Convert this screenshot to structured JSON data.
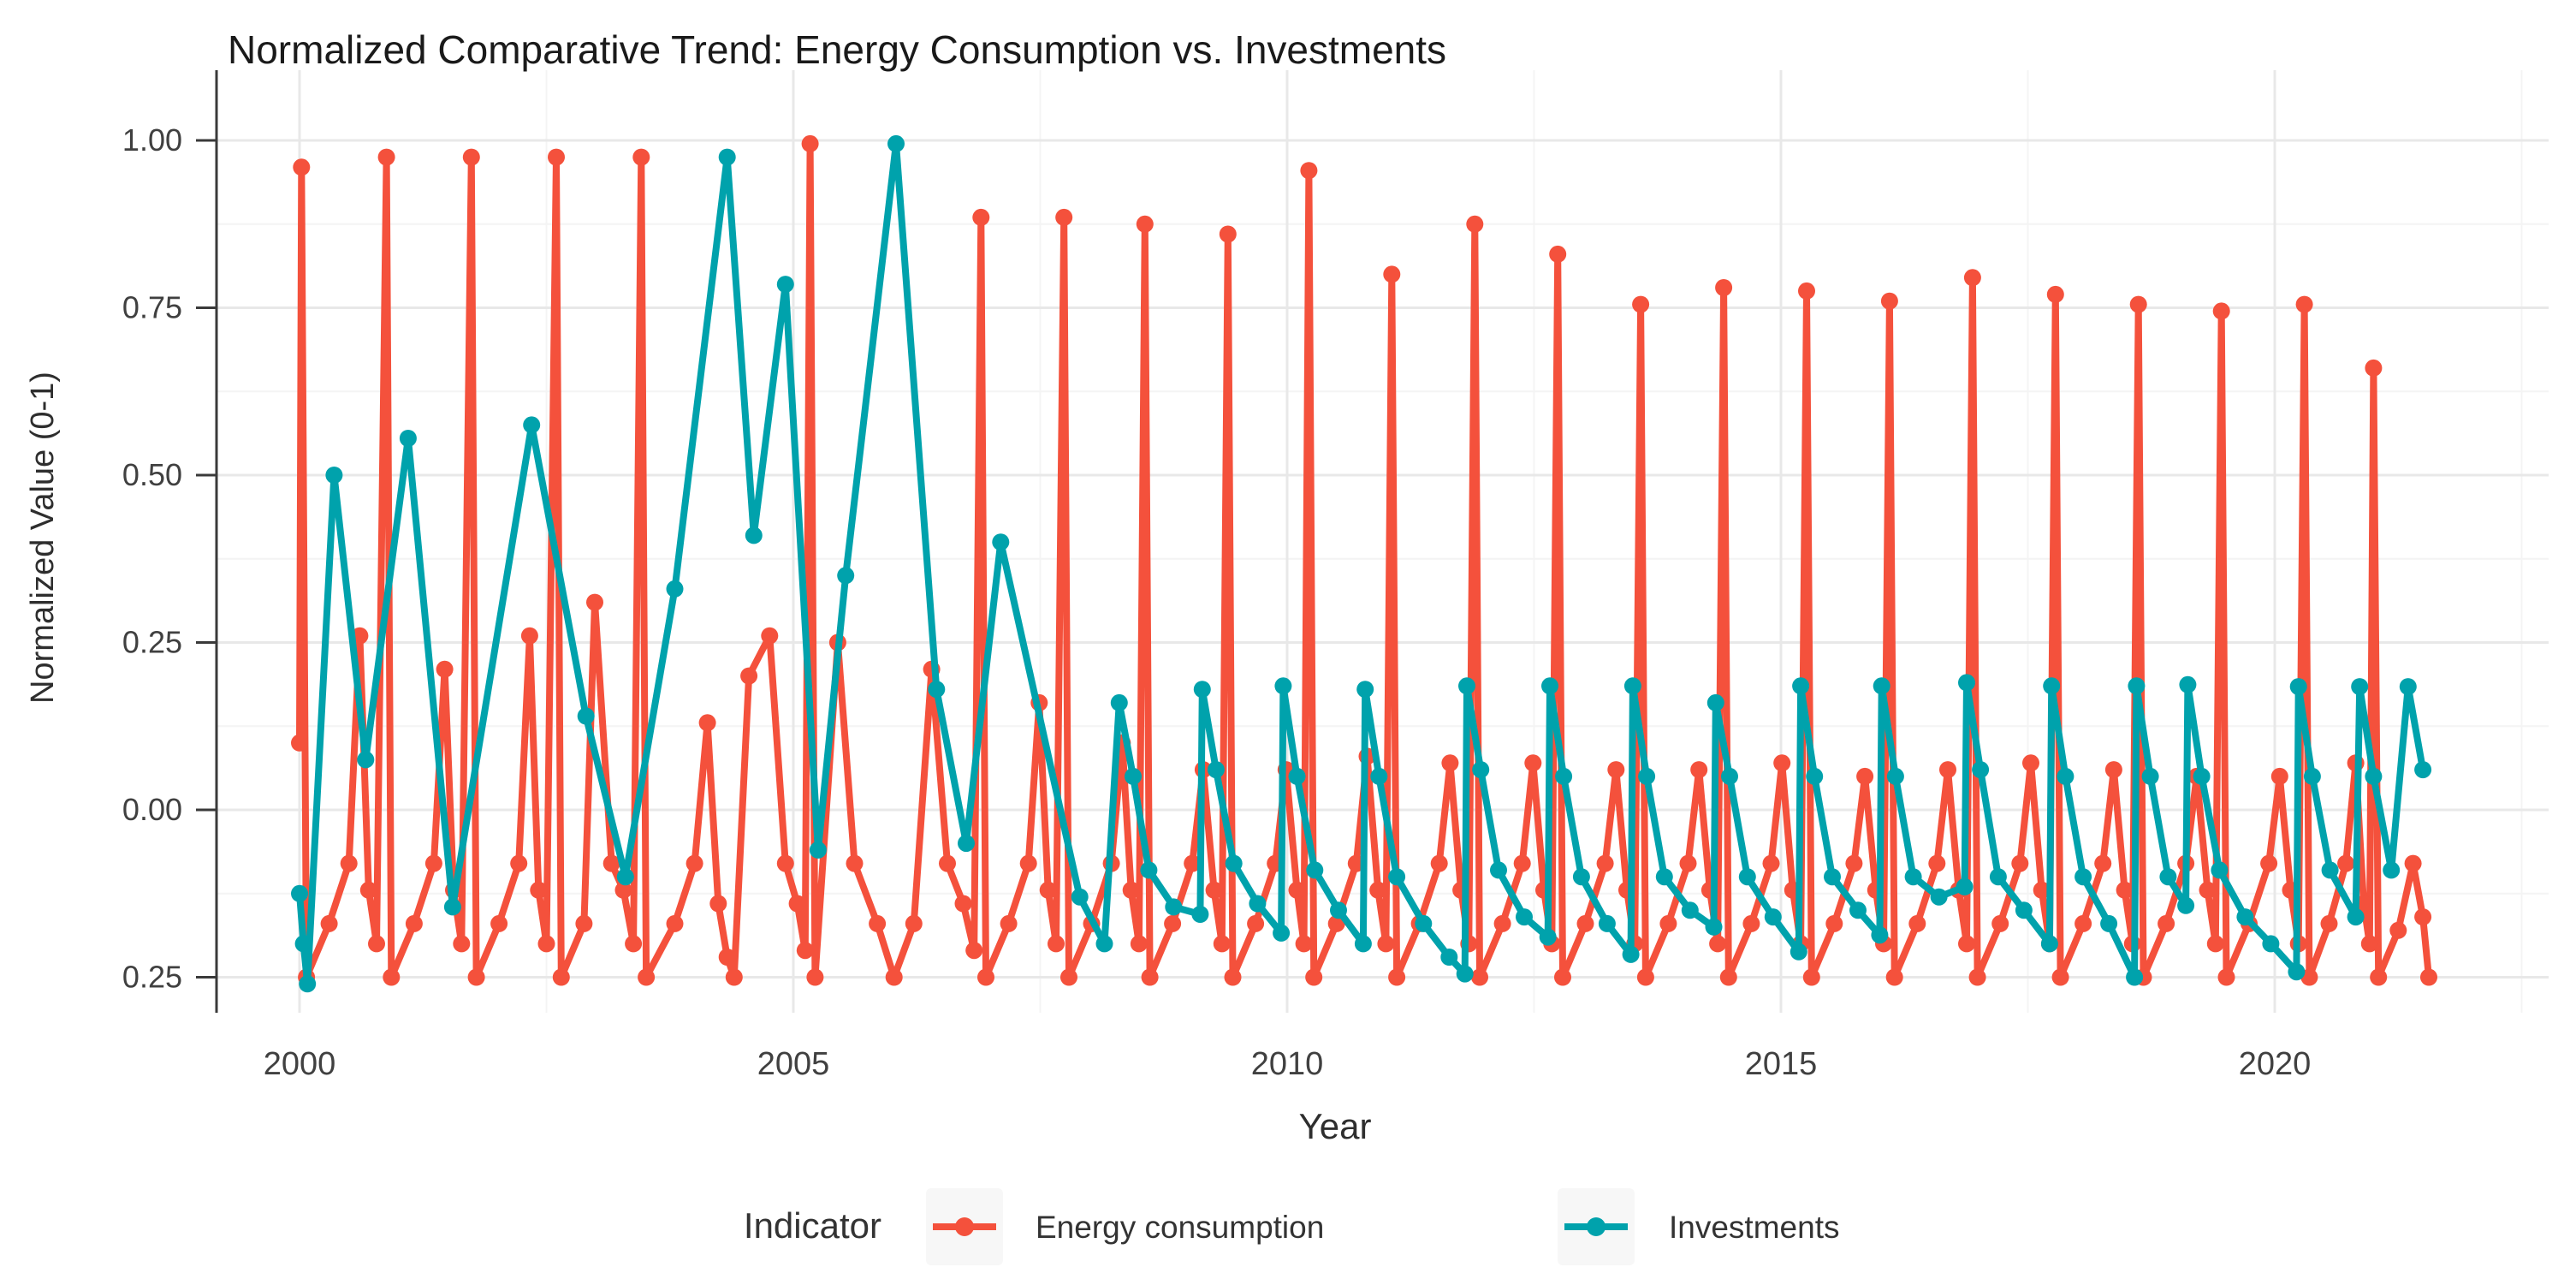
{
  "title": "Normalized Comparative Trend: Energy Consumption vs. Investments",
  "axes": {
    "y_title": "Normalized Value (0-1)",
    "x_title": "Year",
    "y_ticks": [
      {
        "label": "1.00",
        "value": 1.0
      },
      {
        "label": "0.75",
        "value": 0.75
      },
      {
        "label": "0.50",
        "value": 0.5
      },
      {
        "label": "0.25",
        "value": 0.25
      },
      {
        "label": "0.00",
        "value": 0.0
      },
      {
        "label": "0.25",
        "value": -0.25
      }
    ],
    "x_ticks": [
      {
        "label": "2000",
        "value": 2000
      },
      {
        "label": "2005",
        "value": 2005
      },
      {
        "label": "2010",
        "value": 2010
      },
      {
        "label": "2015",
        "value": 2015
      },
      {
        "label": "2020",
        "value": 2020
      }
    ],
    "y_minor": [
      0.875,
      0.625,
      0.375,
      0.125,
      -0.125
    ],
    "x_minor": [
      2002.5,
      2007.5,
      2012.5,
      2017.5,
      2022.5
    ]
  },
  "legend": {
    "title": "Indicator",
    "items": [
      {
        "label": "Energy consumption",
        "color": "#F4513C"
      },
      {
        "label": "Investments",
        "color": "#00A2AC"
      }
    ]
  },
  "colors": {
    "energy": "#F4513C",
    "investments": "#00A2AC",
    "grid_major": "#E8E8E8",
    "grid_minor": "#F4F4F4",
    "axis_line": "#3A3A3A",
    "tick_text": "#404040",
    "title_text": "#1A1A1A"
  },
  "chart_data": {
    "type": "line",
    "title": "Normalized Comparative Trend: Energy Consumption vs. Investments",
    "xlabel": "Year",
    "ylabel": "Normalized Value (0-1)",
    "xlim": [
      1999.2,
      2022.8
    ],
    "ylim": [
      -0.32,
      1.05
    ],
    "grid": true,
    "legend_position": "bottom",
    "series": [
      {
        "name": "Energy consumption",
        "color": "#F4513C",
        "points": [
          [
            2000.0,
            0.1
          ],
          [
            2000.02,
            0.96
          ],
          [
            2000.07,
            -0.25
          ],
          [
            2000.3,
            -0.17
          ],
          [
            2000.5,
            -0.08
          ],
          [
            2000.61,
            0.26
          ],
          [
            2000.7,
            -0.12
          ],
          [
            2000.78,
            -0.2
          ],
          [
            2000.88,
            0.975
          ],
          [
            2000.93,
            -0.25
          ],
          [
            2001.16,
            -0.17
          ],
          [
            2001.36,
            -0.08
          ],
          [
            2001.47,
            0.21
          ],
          [
            2001.56,
            -0.12
          ],
          [
            2001.64,
            -0.2
          ],
          [
            2001.74,
            0.975
          ],
          [
            2001.79,
            -0.25
          ],
          [
            2002.02,
            -0.17
          ],
          [
            2002.22,
            -0.08
          ],
          [
            2002.33,
            0.26
          ],
          [
            2002.42,
            -0.12
          ],
          [
            2002.5,
            -0.2
          ],
          [
            2002.6,
            0.975
          ],
          [
            2002.65,
            -0.25
          ],
          [
            2002.88,
            -0.17
          ],
          [
            2002.99,
            0.31
          ],
          [
            2003.16,
            -0.08
          ],
          [
            2003.28,
            -0.12
          ],
          [
            2003.38,
            -0.2
          ],
          [
            2003.46,
            0.975
          ],
          [
            2003.51,
            -0.25
          ],
          [
            2003.8,
            -0.17
          ],
          [
            2004.0,
            -0.08
          ],
          [
            2004.13,
            0.13
          ],
          [
            2004.24,
            -0.14
          ],
          [
            2004.33,
            -0.22
          ],
          [
            2004.4,
            -0.25
          ],
          [
            2004.55,
            0.2
          ],
          [
            2004.76,
            0.26
          ],
          [
            2004.92,
            -0.08
          ],
          [
            2005.04,
            -0.14
          ],
          [
            2005.12,
            -0.21
          ],
          [
            2005.17,
            0.995
          ],
          [
            2005.22,
            -0.25
          ],
          [
            2005.45,
            0.25
          ],
          [
            2005.62,
            -0.08
          ],
          [
            2005.85,
            -0.17
          ],
          [
            2006.02,
            -0.25
          ],
          [
            2006.22,
            -0.17
          ],
          [
            2006.4,
            0.21
          ],
          [
            2006.56,
            -0.08
          ],
          [
            2006.72,
            -0.14
          ],
          [
            2006.83,
            -0.21
          ],
          [
            2006.9,
            0.885
          ],
          [
            2006.95,
            -0.25
          ],
          [
            2007.18,
            -0.17
          ],
          [
            2007.38,
            -0.08
          ],
          [
            2007.49,
            0.16
          ],
          [
            2007.58,
            -0.12
          ],
          [
            2007.66,
            -0.2
          ],
          [
            2007.74,
            0.885
          ],
          [
            2007.79,
            -0.25
          ],
          [
            2008.02,
            -0.17
          ],
          [
            2008.22,
            -0.08
          ],
          [
            2008.33,
            0.1
          ],
          [
            2008.42,
            -0.12
          ],
          [
            2008.5,
            -0.2
          ],
          [
            2008.56,
            0.875
          ],
          [
            2008.61,
            -0.25
          ],
          [
            2008.84,
            -0.17
          ],
          [
            2009.04,
            -0.08
          ],
          [
            2009.15,
            0.06
          ],
          [
            2009.26,
            -0.12
          ],
          [
            2009.34,
            -0.2
          ],
          [
            2009.4,
            0.86
          ],
          [
            2009.45,
            -0.25
          ],
          [
            2009.68,
            -0.17
          ],
          [
            2009.88,
            -0.08
          ],
          [
            2009.99,
            0.06
          ],
          [
            2010.1,
            -0.12
          ],
          [
            2010.17,
            -0.2
          ],
          [
            2010.22,
            0.955
          ],
          [
            2010.27,
            -0.25
          ],
          [
            2010.5,
            -0.17
          ],
          [
            2010.7,
            -0.08
          ],
          [
            2010.81,
            0.08
          ],
          [
            2010.92,
            -0.12
          ],
          [
            2011.0,
            -0.2
          ],
          [
            2011.06,
            0.8
          ],
          [
            2011.11,
            -0.25
          ],
          [
            2011.34,
            -0.17
          ],
          [
            2011.54,
            -0.08
          ],
          [
            2011.65,
            0.07
          ],
          [
            2011.76,
            -0.12
          ],
          [
            2011.84,
            -0.2
          ],
          [
            2011.9,
            0.875
          ],
          [
            2011.95,
            -0.25
          ],
          [
            2012.18,
            -0.17
          ],
          [
            2012.38,
            -0.08
          ],
          [
            2012.49,
            0.07
          ],
          [
            2012.6,
            -0.12
          ],
          [
            2012.68,
            -0.2
          ],
          [
            2012.74,
            0.83
          ],
          [
            2012.79,
            -0.25
          ],
          [
            2013.02,
            -0.17
          ],
          [
            2013.22,
            -0.08
          ],
          [
            2013.33,
            0.06
          ],
          [
            2013.44,
            -0.12
          ],
          [
            2013.52,
            -0.2
          ],
          [
            2013.58,
            0.755
          ],
          [
            2013.63,
            -0.25
          ],
          [
            2013.86,
            -0.17
          ],
          [
            2014.06,
            -0.08
          ],
          [
            2014.17,
            0.06
          ],
          [
            2014.28,
            -0.12
          ],
          [
            2014.36,
            -0.2
          ],
          [
            2014.42,
            0.78
          ],
          [
            2014.47,
            -0.25
          ],
          [
            2014.7,
            -0.17
          ],
          [
            2014.9,
            -0.08
          ],
          [
            2015.01,
            0.07
          ],
          [
            2015.12,
            -0.12
          ],
          [
            2015.2,
            -0.2
          ],
          [
            2015.26,
            0.775
          ],
          [
            2015.31,
            -0.25
          ],
          [
            2015.54,
            -0.17
          ],
          [
            2015.74,
            -0.08
          ],
          [
            2015.85,
            0.05
          ],
          [
            2015.96,
            -0.12
          ],
          [
            2016.04,
            -0.2
          ],
          [
            2016.1,
            0.76
          ],
          [
            2016.15,
            -0.25
          ],
          [
            2016.38,
            -0.17
          ],
          [
            2016.58,
            -0.08
          ],
          [
            2016.69,
            0.06
          ],
          [
            2016.8,
            -0.12
          ],
          [
            2016.88,
            -0.2
          ],
          [
            2016.94,
            0.795
          ],
          [
            2016.99,
            -0.25
          ],
          [
            2017.22,
            -0.17
          ],
          [
            2017.42,
            -0.08
          ],
          [
            2017.53,
            0.07
          ],
          [
            2017.64,
            -0.12
          ],
          [
            2017.72,
            -0.2
          ],
          [
            2017.78,
            0.77
          ],
          [
            2017.83,
            -0.25
          ],
          [
            2018.06,
            -0.17
          ],
          [
            2018.26,
            -0.08
          ],
          [
            2018.37,
            0.06
          ],
          [
            2018.48,
            -0.12
          ],
          [
            2018.56,
            -0.2
          ],
          [
            2018.62,
            0.755
          ],
          [
            2018.67,
            -0.25
          ],
          [
            2018.9,
            -0.17
          ],
          [
            2019.1,
            -0.08
          ],
          [
            2019.21,
            0.05
          ],
          [
            2019.32,
            -0.12
          ],
          [
            2019.4,
            -0.2
          ],
          [
            2019.46,
            0.745
          ],
          [
            2019.51,
            -0.25
          ],
          [
            2019.74,
            -0.17
          ],
          [
            2019.94,
            -0.08
          ],
          [
            2020.05,
            0.05
          ],
          [
            2020.16,
            -0.12
          ],
          [
            2020.24,
            -0.2
          ],
          [
            2020.3,
            0.755
          ],
          [
            2020.35,
            -0.25
          ],
          [
            2020.55,
            -0.17
          ],
          [
            2020.72,
            -0.08
          ],
          [
            2020.82,
            0.07
          ],
          [
            2020.9,
            -0.14
          ],
          [
            2020.96,
            -0.2
          ],
          [
            2021.0,
            0.66
          ],
          [
            2021.05,
            -0.25
          ],
          [
            2021.25,
            -0.18
          ],
          [
            2021.4,
            -0.08
          ],
          [
            2021.5,
            -0.16
          ],
          [
            2021.56,
            -0.25
          ]
        ]
      },
      {
        "name": "Investments",
        "color": "#00A2AC",
        "points": [
          [
            2000.0,
            -0.125
          ],
          [
            2000.04,
            -0.2
          ],
          [
            2000.08,
            -0.26
          ],
          [
            2000.35,
            0.5
          ],
          [
            2000.67,
            0.075
          ],
          [
            2001.1,
            0.555
          ],
          [
            2001.55,
            -0.145
          ],
          [
            2002.35,
            0.575
          ],
          [
            2002.9,
            0.14
          ],
          [
            2003.3,
            -0.1
          ],
          [
            2003.8,
            0.33
          ],
          [
            2004.33,
            0.975
          ],
          [
            2004.6,
            0.41
          ],
          [
            2004.92,
            0.785
          ],
          [
            2005.25,
            -0.06
          ],
          [
            2005.53,
            0.35
          ],
          [
            2006.04,
            0.995
          ],
          [
            2006.45,
            0.18
          ],
          [
            2006.75,
            -0.05
          ],
          [
            2007.1,
            0.4
          ],
          [
            2007.9,
            -0.13
          ],
          [
            2008.15,
            -0.2
          ],
          [
            2008.3,
            0.16
          ],
          [
            2008.44,
            0.05
          ],
          [
            2008.6,
            -0.09
          ],
          [
            2008.85,
            -0.145
          ],
          [
            2009.12,
            -0.156
          ],
          [
            2009.14,
            0.18
          ],
          [
            2009.28,
            0.06
          ],
          [
            2009.46,
            -0.08
          ],
          [
            2009.7,
            -0.14
          ],
          [
            2009.94,
            -0.184
          ],
          [
            2009.96,
            0.185
          ],
          [
            2010.1,
            0.05
          ],
          [
            2010.28,
            -0.09
          ],
          [
            2010.52,
            -0.15
          ],
          [
            2010.77,
            -0.2
          ],
          [
            2010.79,
            0.18
          ],
          [
            2010.93,
            0.05
          ],
          [
            2011.11,
            -0.1
          ],
          [
            2011.38,
            -0.17
          ],
          [
            2011.64,
            -0.22
          ],
          [
            2011.8,
            -0.245
          ],
          [
            2011.82,
            0.185
          ],
          [
            2011.96,
            0.06
          ],
          [
            2012.14,
            -0.09
          ],
          [
            2012.4,
            -0.16
          ],
          [
            2012.64,
            -0.19
          ],
          [
            2012.66,
            0.185
          ],
          [
            2012.8,
            0.05
          ],
          [
            2012.98,
            -0.1
          ],
          [
            2013.24,
            -0.17
          ],
          [
            2013.48,
            -0.216
          ],
          [
            2013.5,
            0.185
          ],
          [
            2013.64,
            0.05
          ],
          [
            2013.82,
            -0.1
          ],
          [
            2014.08,
            -0.15
          ],
          [
            2014.32,
            -0.175
          ],
          [
            2014.34,
            0.16
          ],
          [
            2014.48,
            0.05
          ],
          [
            2014.66,
            -0.1
          ],
          [
            2014.92,
            -0.16
          ],
          [
            2015.18,
            -0.212
          ],
          [
            2015.2,
            0.185
          ],
          [
            2015.34,
            0.05
          ],
          [
            2015.52,
            -0.1
          ],
          [
            2015.78,
            -0.15
          ],
          [
            2016.0,
            -0.187
          ],
          [
            2016.02,
            0.185
          ],
          [
            2016.16,
            0.05
          ],
          [
            2016.34,
            -0.1
          ],
          [
            2016.6,
            -0.13
          ],
          [
            2016.86,
            -0.115
          ],
          [
            2016.88,
            0.19
          ],
          [
            2017.02,
            0.06
          ],
          [
            2017.2,
            -0.1
          ],
          [
            2017.46,
            -0.15
          ],
          [
            2017.72,
            -0.2
          ],
          [
            2017.74,
            0.185
          ],
          [
            2017.88,
            0.05
          ],
          [
            2018.06,
            -0.1
          ],
          [
            2018.32,
            -0.17
          ],
          [
            2018.58,
            -0.25
          ],
          [
            2018.6,
            0.185
          ],
          [
            2018.74,
            0.05
          ],
          [
            2018.92,
            -0.1
          ],
          [
            2019.1,
            -0.143
          ],
          [
            2019.12,
            0.187
          ],
          [
            2019.26,
            0.05
          ],
          [
            2019.44,
            -0.09
          ],
          [
            2019.7,
            -0.16
          ],
          [
            2019.96,
            -0.2
          ],
          [
            2020.22,
            -0.242
          ],
          [
            2020.24,
            0.184
          ],
          [
            2020.38,
            0.05
          ],
          [
            2020.56,
            -0.09
          ],
          [
            2020.82,
            -0.16
          ],
          [
            2020.86,
            0.184
          ],
          [
            2021.0,
            0.05
          ],
          [
            2021.18,
            -0.09
          ],
          [
            2021.35,
            0.184
          ],
          [
            2021.5,
            0.06
          ]
        ]
      }
    ]
  },
  "geometry_note": "y axis top 1.00, bottom tick rendered as 0.25"
}
